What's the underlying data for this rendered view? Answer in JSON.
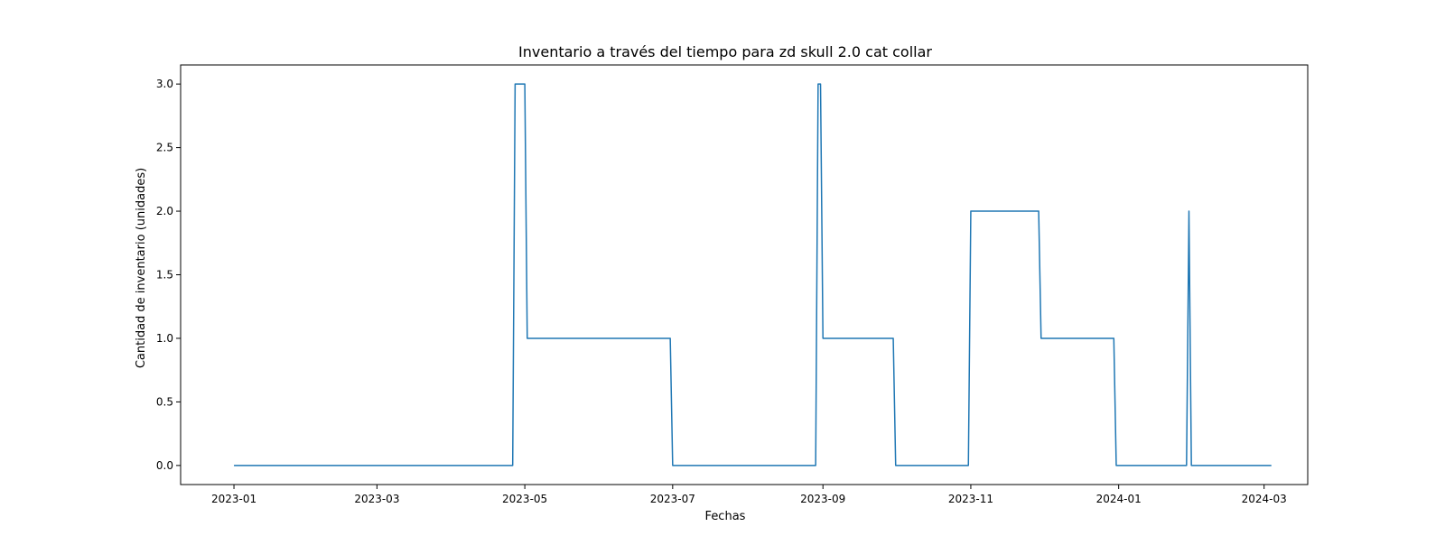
{
  "chart_data": {
    "type": "line",
    "title": "Inventario a través del tiempo para zd skull 2.0 cat collar",
    "xlabel": "Fechas",
    "ylabel": "Cantidad de inventario (unidades)",
    "x_axis_type": "date",
    "xlim": [
      "2022-12-10",
      "2024-03-19"
    ],
    "ylim": [
      -0.15,
      3.15
    ],
    "x_ticks": [
      "2023-01-01",
      "2023-03-01",
      "2023-05-01",
      "2023-07-01",
      "2023-09-01",
      "2023-11-01",
      "2024-01-01",
      "2024-03-01"
    ],
    "x_tick_labels": [
      "2023-01",
      "2023-03",
      "2023-05",
      "2023-07",
      "2023-09",
      "2023-11",
      "2024-01",
      "2024-03"
    ],
    "y_ticks": [
      0.0,
      0.5,
      1.0,
      1.5,
      2.0,
      2.5,
      3.0
    ],
    "y_tick_labels": [
      "0.0",
      "0.5",
      "1.0",
      "1.5",
      "2.0",
      "2.5",
      "3.0"
    ],
    "grid": false,
    "legend": "none",
    "colors": {
      "line": "#1f77b4",
      "axes": "#000000",
      "background": "#ffffff"
    },
    "series": [
      {
        "x": [
          "2023-01-01",
          "2023-04-26",
          "2023-04-27",
          "2023-05-01",
          "2023-05-02",
          "2023-06-30",
          "2023-07-01",
          "2023-08-29",
          "2023-08-30",
          "2023-08-31",
          "2023-09-01",
          "2023-09-30",
          "2023-10-01",
          "2023-10-31",
          "2023-11-01",
          "2023-11-29",
          "2023-11-30",
          "2023-12-30",
          "2023-12-31",
          "2024-01-29",
          "2024-01-30",
          "2024-01-31",
          "2024-03-04"
        ],
        "y": [
          0,
          0,
          3,
          3,
          1,
          1,
          0,
          0,
          3,
          3,
          1,
          1,
          0,
          0,
          2,
          2,
          1,
          1,
          0,
          0,
          2,
          0,
          0
        ]
      }
    ]
  }
}
